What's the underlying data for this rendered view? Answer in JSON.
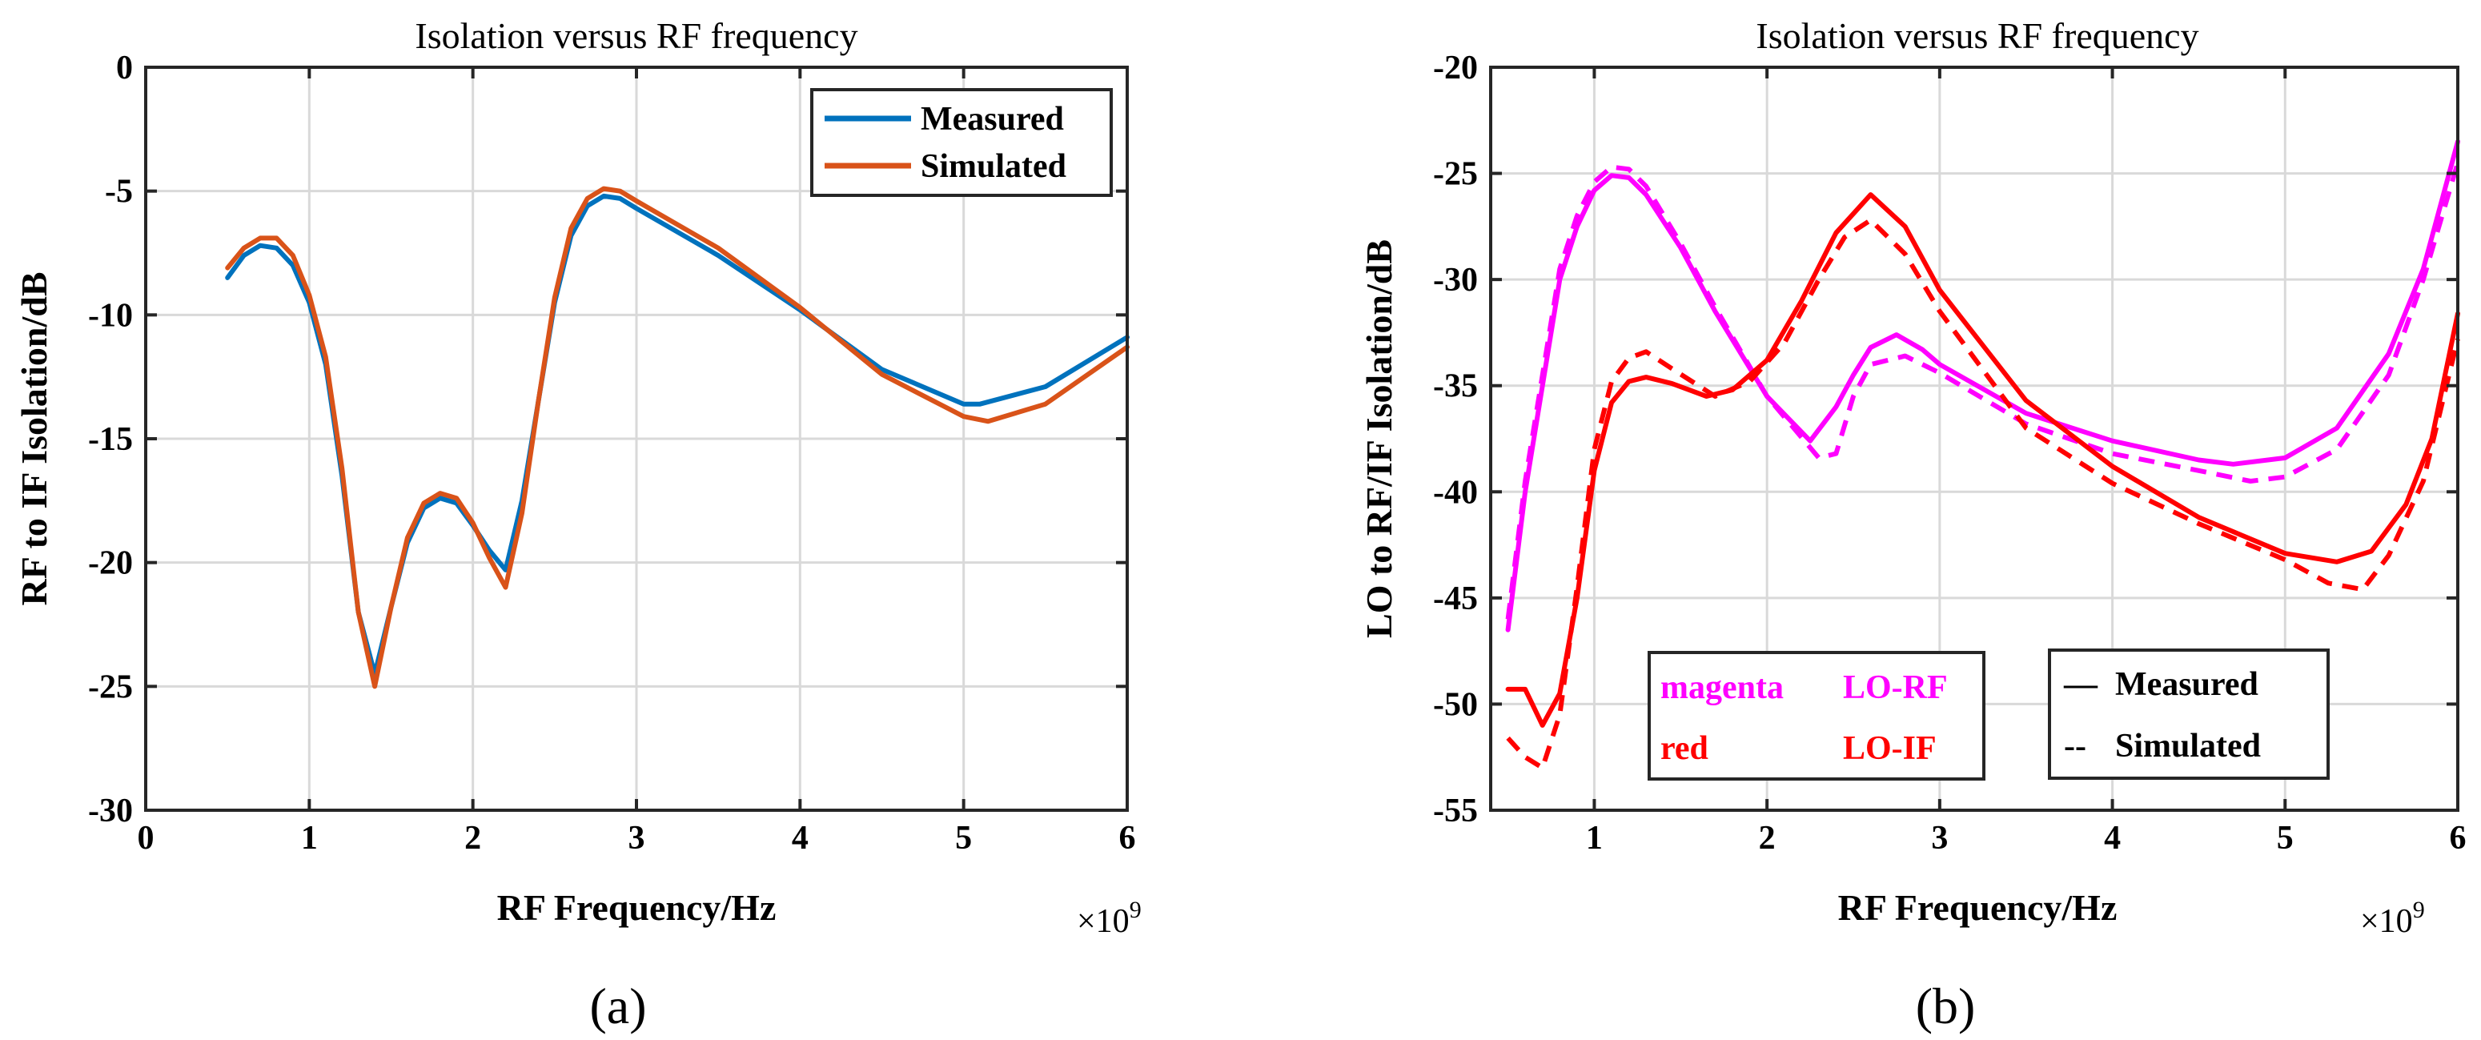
{
  "chart_data": [
    {
      "type": "line",
      "title": "Isolation versus RF frequency",
      "xlabel": "RF Frequency/Hz",
      "ylabel": "RF to IF Isolation/dB",
      "x_multiplier": "×10",
      "x_multiplier_exp": "9",
      "caption": "(a)",
      "xlim": [
        0,
        6
      ],
      "ylim": [
        -30,
        0
      ],
      "xticks": [
        0,
        1,
        2,
        3,
        4,
        5,
        6
      ],
      "xtick_labels": [
        "0",
        "1",
        "2",
        "3",
        "4",
        "5",
        "6"
      ],
      "yticks": [
        -30,
        -25,
        -20,
        -15,
        -10,
        -5,
        0
      ],
      "ytick_labels": [
        "-30",
        "-25",
        "-20",
        "-15",
        "-10",
        "-5",
        "0"
      ],
      "grid": true,
      "legend_position": "top-right",
      "legend": [
        {
          "label": "Measured",
          "color": "#0072BD"
        },
        {
          "label": "Simulated",
          "color": "#D95319"
        }
      ],
      "series": [
        {
          "name": "Measured",
          "color": "#0072BD",
          "dash": "solid",
          "x": [
            0.5,
            0.6,
            0.7,
            0.8,
            0.9,
            1.0,
            1.1,
            1.2,
            1.3,
            1.4,
            1.5,
            1.6,
            1.7,
            1.8,
            1.9,
            2.0,
            2.1,
            2.2,
            2.3,
            2.4,
            2.5,
            2.6,
            2.7,
            2.8,
            2.9,
            3.0,
            3.5,
            4.0,
            4.5,
            5.0,
            5.1,
            5.5,
            6.0
          ],
          "y": [
            -8.5,
            -7.6,
            -7.2,
            -7.3,
            -8.0,
            -9.5,
            -12.0,
            -16.5,
            -22.0,
            -24.5,
            -21.8,
            -19.2,
            -17.8,
            -17.4,
            -17.6,
            -18.5,
            -19.5,
            -20.3,
            -17.5,
            -13.5,
            -9.5,
            -6.8,
            -5.6,
            -5.2,
            -5.3,
            -5.7,
            -7.6,
            -9.8,
            -12.2,
            -13.6,
            -13.6,
            -12.9,
            -10.9
          ]
        },
        {
          "name": "Simulated",
          "color": "#D95319",
          "dash": "solid",
          "x": [
            0.5,
            0.6,
            0.7,
            0.8,
            0.9,
            1.0,
            1.1,
            1.2,
            1.3,
            1.4,
            1.5,
            1.6,
            1.7,
            1.8,
            1.9,
            2.0,
            2.1,
            2.2,
            2.3,
            2.4,
            2.5,
            2.6,
            2.7,
            2.8,
            2.9,
            3.0,
            3.5,
            4.0,
            4.5,
            5.0,
            5.15,
            5.5,
            6.0
          ],
          "y": [
            -8.1,
            -7.3,
            -6.9,
            -6.9,
            -7.6,
            -9.2,
            -11.7,
            -16.2,
            -22.0,
            -25.0,
            -21.8,
            -19.0,
            -17.6,
            -17.2,
            -17.4,
            -18.4,
            -19.8,
            -21.0,
            -18.0,
            -13.5,
            -9.3,
            -6.5,
            -5.3,
            -4.9,
            -5.0,
            -5.4,
            -7.3,
            -9.7,
            -12.4,
            -14.1,
            -14.3,
            -13.6,
            -11.3
          ]
        }
      ]
    },
    {
      "type": "line",
      "title": "Isolation versus RF frequency",
      "xlabel": "RF Frequency/Hz",
      "ylabel": "LO to RF/IF Isolation/dB",
      "x_multiplier": "×10",
      "x_multiplier_exp": "9",
      "caption": "(b)",
      "xlim": [
        0.4,
        6
      ],
      "ylim": [
        -55,
        -20
      ],
      "xticks": [
        1,
        2,
        3,
        4,
        5,
        6
      ],
      "xtick_labels": [
        "1",
        "2",
        "3",
        "4",
        "5",
        "6"
      ],
      "yticks": [
        -55,
        -50,
        -45,
        -40,
        -35,
        -30,
        -25,
        -20
      ],
      "ytick_labels": [
        "-55",
        "-50",
        "-45",
        "-40",
        "-35",
        "-30",
        "-25",
        "-20"
      ],
      "grid": true,
      "legend_color_box": {
        "position": "bottom-left",
        "rows": [
          {
            "color_word": "magenta",
            "label": "LO-RF",
            "color": "#FF00FF"
          },
          {
            "color_word": "red",
            "label": "LO-IF",
            "color": "#FF0000"
          }
        ]
      },
      "legend_style_box": {
        "position": "bottom-center",
        "rows": [
          {
            "symbol": "—",
            "label": "Measured"
          },
          {
            "symbol": "--",
            "label": "Simulated"
          }
        ]
      },
      "series": [
        {
          "name": "LO-RF Measured",
          "color": "#FF00FF",
          "dash": "solid",
          "x": [
            0.5,
            0.6,
            0.7,
            0.8,
            0.9,
            1.0,
            1.1,
            1.2,
            1.3,
            1.5,
            1.7,
            2.0,
            2.25,
            2.4,
            2.5,
            2.6,
            2.75,
            2.9,
            3.0,
            3.5,
            4.0,
            4.5,
            4.7,
            5.0,
            5.3,
            5.6,
            5.8,
            6.0
          ],
          "y": [
            -46.5,
            -40.0,
            -35.0,
            -30.0,
            -27.5,
            -25.8,
            -25.1,
            -25.2,
            -26.0,
            -28.5,
            -31.5,
            -35.5,
            -37.6,
            -36.0,
            -34.5,
            -33.2,
            -32.6,
            -33.3,
            -34.0,
            -36.3,
            -37.6,
            -38.5,
            -38.7,
            -38.4,
            -37.0,
            -33.5,
            -29.5,
            -23.5
          ]
        },
        {
          "name": "LO-RF Simulated",
          "color": "#FF00FF",
          "dash": "dashed",
          "x": [
            0.5,
            0.6,
            0.7,
            0.8,
            0.9,
            1.0,
            1.1,
            1.2,
            1.3,
            1.5,
            1.7,
            2.0,
            2.3,
            2.4,
            2.5,
            2.6,
            2.8,
            3.0,
            3.5,
            4.0,
            4.5,
            4.8,
            5.0,
            5.3,
            5.6,
            5.8,
            6.0
          ],
          "y": [
            -46.0,
            -39.5,
            -34.5,
            -29.5,
            -27.0,
            -25.4,
            -24.7,
            -24.8,
            -25.6,
            -28.3,
            -31.3,
            -35.5,
            -38.4,
            -38.2,
            -35.5,
            -34.0,
            -33.6,
            -34.4,
            -36.8,
            -38.2,
            -39.0,
            -39.5,
            -39.3,
            -38.0,
            -34.5,
            -30.0,
            -24.5
          ]
        },
        {
          "name": "LO-IF Measured",
          "color": "#FF0000",
          "dash": "solid",
          "x": [
            0.5,
            0.6,
            0.7,
            0.8,
            0.9,
            1.0,
            1.1,
            1.2,
            1.3,
            1.45,
            1.65,
            1.8,
            2.0,
            2.2,
            2.4,
            2.6,
            2.8,
            3.0,
            3.5,
            4.0,
            4.5,
            5.0,
            5.3,
            5.5,
            5.7,
            5.85,
            6.0
          ],
          "y": [
            -49.3,
            -49.3,
            -51.0,
            -49.5,
            -45.0,
            -39.0,
            -35.8,
            -34.8,
            -34.6,
            -34.9,
            -35.5,
            -35.2,
            -33.8,
            -31.0,
            -27.8,
            -26.0,
            -27.5,
            -30.5,
            -35.7,
            -38.8,
            -41.2,
            -42.9,
            -43.3,
            -42.8,
            -40.6,
            -37.5,
            -31.6
          ]
        },
        {
          "name": "LO-IF Simulated",
          "color": "#FF0000",
          "dash": "dashed",
          "x": [
            0.5,
            0.6,
            0.7,
            0.8,
            0.9,
            1.0,
            1.1,
            1.2,
            1.3,
            1.45,
            1.7,
            1.9,
            2.1,
            2.3,
            2.45,
            2.6,
            2.8,
            3.0,
            3.5,
            4.0,
            4.5,
            5.0,
            5.25,
            5.45,
            5.6,
            5.8,
            6.0
          ],
          "y": [
            -51.6,
            -52.5,
            -53.0,
            -50.5,
            -44.5,
            -38.0,
            -34.8,
            -33.7,
            -33.4,
            -34.2,
            -35.5,
            -34.8,
            -33.0,
            -30.0,
            -28.0,
            -27.2,
            -28.8,
            -31.5,
            -37.0,
            -39.6,
            -41.5,
            -43.2,
            -44.3,
            -44.6,
            -43.0,
            -39.5,
            -32.8
          ]
        }
      ]
    }
  ]
}
